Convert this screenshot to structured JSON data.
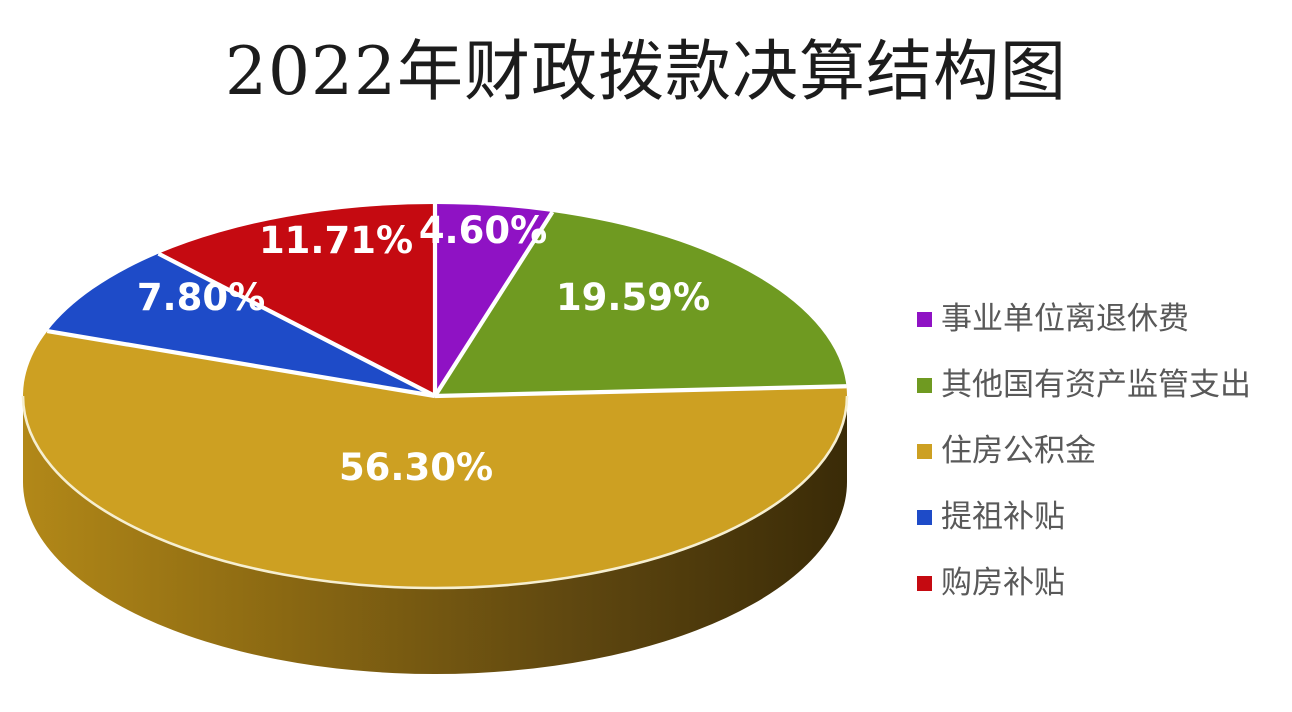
{
  "chart_data": {
    "type": "pie",
    "effect": "3d",
    "title": "2022年财政拨款决算结构图",
    "order": "clockwise-from-top",
    "slices": [
      {
        "label": "事业单位离退休费",
        "value": 4.6,
        "display": "4.60%",
        "color": "#8F12C4"
      },
      {
        "label": "其他国有资产监管支出",
        "value": 19.59,
        "display": "19.59%",
        "color": "#6F9A21"
      },
      {
        "label": "住房公积金",
        "value": 56.3,
        "display": "56.30%",
        "color": "#CDA022"
      },
      {
        "label": "提祖补贴",
        "value": 7.8,
        "display": "7.80%",
        "color": "#1E4BC8"
      },
      {
        "label": "购房补贴",
        "value": 11.71,
        "display": "11.71%",
        "color": "#C50A11"
      }
    ],
    "legend_position": "right",
    "label_text_color": "#FFFFFF",
    "legend_text_color": "#595959",
    "title_text_color": "#1C1C1C",
    "separator_color": "#FFFFFF",
    "rim_color": "#F6EFD1",
    "side_gradient": [
      "#B28818",
      "#8A6812",
      "#604810",
      "#3A2B07"
    ],
    "background_color": "#FFFFFF"
  }
}
